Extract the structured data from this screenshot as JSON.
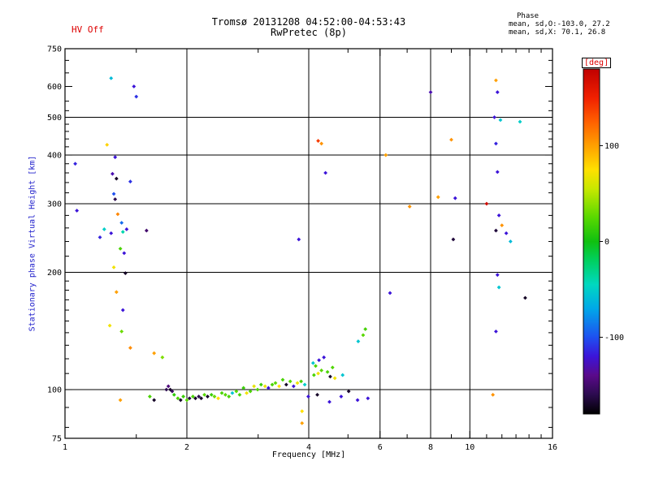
{
  "header": {
    "hv_status": "HV Off",
    "phase_label": "Phase",
    "phase_stats_o": "mean, sd,O:-103.0, 27.2",
    "phase_stats_x": "mean, sd,X:  70.1, 26.8"
  },
  "colorbar": {
    "label": "[deg]",
    "label_color": "#dd0000",
    "range": [
      -180,
      180
    ],
    "ticks": [
      100,
      0,
      -100
    ],
    "stops": [
      [
        -180,
        "#000000"
      ],
      [
        -160,
        "#2b0b4e"
      ],
      [
        -140,
        "#5a0a8a"
      ],
      [
        -120,
        "#3c14d8"
      ],
      [
        -100,
        "#1e50f0"
      ],
      [
        -70,
        "#00a8e8"
      ],
      [
        -45,
        "#00d8c0"
      ],
      [
        -20,
        "#00d060"
      ],
      [
        0,
        "#10c010"
      ],
      [
        25,
        "#58d800"
      ],
      [
        55,
        "#c8e800"
      ],
      [
        75,
        "#ffe000"
      ],
      [
        100,
        "#ffa000"
      ],
      [
        125,
        "#ff6000"
      ],
      [
        150,
        "#f02000"
      ],
      [
        180,
        "#c00000"
      ]
    ]
  },
  "chart_data": {
    "type": "scatter",
    "title": "Tromsø 20131208 04:52:00-04:53:43",
    "subtitle": "RwPretec (8p)",
    "xlabel": "Frequency [MHz]",
    "ylabel": "Stationary phase Virtual Height [km]",
    "xscale": "log",
    "yscale": "log",
    "xlim": [
      1,
      16
    ],
    "ylim": [
      75,
      750
    ],
    "x_ticks": [
      1,
      2,
      4,
      6,
      8,
      10,
      16
    ],
    "y_ticks": [
      75,
      100,
      200,
      300,
      400,
      500,
      600,
      750
    ],
    "x_gridlines": [
      2,
      4,
      6,
      8,
      10
    ],
    "y_gridlines": [
      100,
      200,
      300,
      400,
      500
    ],
    "x_minor": [
      1.5,
      3,
      5,
      7,
      9,
      11,
      12,
      13,
      14,
      15
    ],
    "y_minor": [
      80,
      90,
      110,
      120,
      130,
      140,
      150,
      160,
      170,
      180,
      190,
      220,
      240,
      260,
      280,
      320,
      340,
      360,
      380,
      420,
      440,
      460,
      480,
      520,
      550,
      650,
      700
    ],
    "color_key": "phase_deg",
    "points": [
      [
        1.3,
        630,
        -60
      ],
      [
        1.48,
        600,
        -120
      ],
      [
        1.5,
        565,
        -110
      ],
      [
        1.27,
        425,
        80
      ],
      [
        1.33,
        395,
        -120
      ],
      [
        1.06,
        380,
        -115
      ],
      [
        1.31,
        358,
        -130
      ],
      [
        1.34,
        348,
        -170
      ],
      [
        1.45,
        342,
        -110
      ],
      [
        1.32,
        318,
        -100
      ],
      [
        1.33,
        308,
        -160
      ],
      [
        1.35,
        282,
        110
      ],
      [
        1.07,
        288,
        -120
      ],
      [
        1.38,
        268,
        -90
      ],
      [
        1.25,
        258,
        -50
      ],
      [
        1.3,
        252,
        -120
      ],
      [
        1.22,
        246,
        -115
      ],
      [
        1.39,
        254,
        -40
      ],
      [
        1.42,
        258,
        -120
      ],
      [
        1.59,
        256,
        -150
      ],
      [
        1.37,
        230,
        20
      ],
      [
        1.4,
        224,
        -120
      ],
      [
        1.32,
        206,
        70
      ],
      [
        1.41,
        199,
        -170
      ],
      [
        1.34,
        178,
        100
      ],
      [
        1.39,
        160,
        -120
      ],
      [
        1.29,
        146,
        70
      ],
      [
        1.38,
        141,
        30
      ],
      [
        1.45,
        128,
        108
      ],
      [
        1.66,
        124,
        100
      ],
      [
        1.74,
        121,
        35
      ],
      [
        1.37,
        94,
        100
      ],
      [
        1.62,
        96,
        20
      ],
      [
        1.66,
        94,
        -170
      ],
      [
        1.78,
        100,
        -160
      ],
      [
        1.8,
        102,
        -145
      ],
      [
        1.82,
        100,
        -170
      ],
      [
        1.84,
        99,
        -155
      ],
      [
        1.86,
        97,
        10
      ],
      [
        1.9,
        95,
        20
      ],
      [
        1.93,
        94,
        -170
      ],
      [
        1.96,
        96,
        15
      ],
      [
        2.0,
        94,
        25
      ],
      [
        2.03,
        95,
        -165
      ],
      [
        2.07,
        96,
        20
      ],
      [
        2.1,
        95,
        -170
      ],
      [
        2.14,
        96,
        -160
      ],
      [
        2.17,
        95,
        -170
      ],
      [
        2.21,
        97,
        25
      ],
      [
        2.25,
        96,
        -170
      ],
      [
        2.3,
        97,
        15
      ],
      [
        2.34,
        96,
        30
      ],
      [
        2.39,
        95,
        75
      ],
      [
        2.44,
        98,
        20
      ],
      [
        2.49,
        97,
        25
      ],
      [
        2.54,
        96,
        20
      ],
      [
        2.59,
        98,
        -55
      ],
      [
        2.65,
        99,
        25
      ],
      [
        2.7,
        97,
        20
      ],
      [
        2.76,
        101,
        15
      ],
      [
        2.81,
        98,
        70
      ],
      [
        2.87,
        99,
        20
      ],
      [
        2.93,
        102,
        65
      ],
      [
        2.99,
        100,
        20
      ],
      [
        3.05,
        103,
        15
      ],
      [
        3.12,
        102,
        70
      ],
      [
        3.18,
        101,
        -120
      ],
      [
        3.25,
        103,
        20
      ],
      [
        3.31,
        104,
        25
      ],
      [
        3.38,
        102,
        75
      ],
      [
        3.45,
        106,
        20
      ],
      [
        3.52,
        103,
        -170
      ],
      [
        3.6,
        105,
        25
      ],
      [
        3.67,
        102,
        -120
      ],
      [
        3.75,
        104,
        70
      ],
      [
        3.83,
        105,
        20
      ],
      [
        3.91,
        103,
        -50
      ],
      [
        3.99,
        96,
        -120
      ],
      [
        4.2,
        97,
        -170
      ],
      [
        4.5,
        93,
        -120
      ],
      [
        4.81,
        96,
        -120
      ],
      [
        5.02,
        99,
        -168
      ],
      [
        5.28,
        94,
        -120
      ],
      [
        5.6,
        95,
        -120
      ],
      [
        3.85,
        88,
        75
      ],
      [
        3.85,
        82,
        100
      ],
      [
        4.1,
        117,
        -55
      ],
      [
        4.16,
        115,
        20
      ],
      [
        4.24,
        119,
        -120
      ],
      [
        4.3,
        112,
        25
      ],
      [
        4.36,
        121,
        -120
      ],
      [
        4.12,
        109,
        20
      ],
      [
        4.22,
        110,
        70
      ],
      [
        4.45,
        111,
        20
      ],
      [
        4.52,
        108,
        -170
      ],
      [
        4.58,
        114,
        22
      ],
      [
        4.64,
        107,
        70
      ],
      [
        4.85,
        109,
        -55
      ],
      [
        5.3,
        133,
        -55
      ],
      [
        5.45,
        138,
        25
      ],
      [
        5.52,
        143,
        18
      ],
      [
        4.22,
        435,
        140
      ],
      [
        4.3,
        428,
        105
      ],
      [
        4.4,
        360,
        -120
      ],
      [
        3.78,
        243,
        -120
      ],
      [
        6.2,
        400,
        100
      ],
      [
        6.35,
        177,
        -120
      ],
      [
        7.1,
        295,
        105
      ],
      [
        8.0,
        580,
        -130
      ],
      [
        8.35,
        312,
        100
      ],
      [
        9.0,
        438,
        105
      ],
      [
        9.2,
        310,
        -120
      ],
      [
        9.1,
        243,
        -165
      ],
      [
        11.0,
        300,
        172
      ],
      [
        11.6,
        622,
        100
      ],
      [
        11.7,
        580,
        -120
      ],
      [
        11.5,
        500,
        -120
      ],
      [
        11.9,
        492,
        -55
      ],
      [
        13.3,
        487,
        -50
      ],
      [
        11.6,
        428,
        -115
      ],
      [
        11.7,
        362,
        -120
      ],
      [
        11.8,
        280,
        -120
      ],
      [
        11.6,
        256,
        -165
      ],
      [
        12.0,
        264,
        105
      ],
      [
        12.3,
        252,
        -120
      ],
      [
        12.6,
        240,
        -60
      ],
      [
        11.7,
        197,
        -120
      ],
      [
        11.8,
        183,
        -55
      ],
      [
        11.6,
        141,
        -120
      ],
      [
        11.4,
        97,
        105
      ],
      [
        13.7,
        172,
        -170
      ]
    ]
  }
}
